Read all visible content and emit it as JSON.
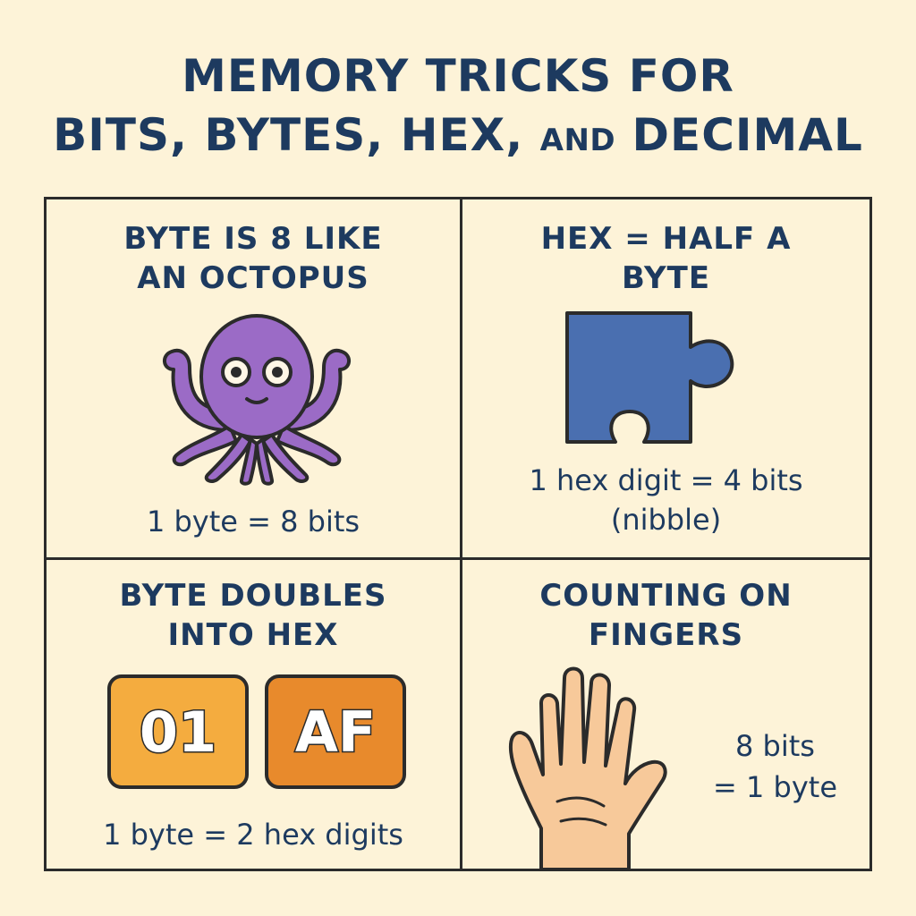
{
  "title": {
    "line1": "MEMORY TRICKS FOR",
    "line2_main": "BITS, BYTES, HEX,",
    "line2_and": "AND",
    "line2_end": "DECIMAL"
  },
  "panels": {
    "octopus": {
      "heading_line1": "BYTE IS 8 LIKE",
      "heading_line2": "AN OCTOPUS",
      "icon": "octopus-icon",
      "caption": "1 byte = 8 bits"
    },
    "puzzle": {
      "heading_line1": "HEX = HALF A",
      "heading_line2": "BYTE",
      "icon": "puzzle-piece-icon",
      "caption_line1": "1 hex digit = 4 bits",
      "caption_line2": "(nibble)"
    },
    "hex_tiles": {
      "heading_line1": "BYTE DOUBLES",
      "heading_line2": "INTO HEX",
      "tiles": [
        "01",
        "AF"
      ],
      "caption": "1 byte = 2 hex digits"
    },
    "fingers": {
      "heading_line1": "COUNTING ON",
      "heading_line2": "FINGERS",
      "icon": "hand-icon",
      "caption_line1": "8 bits",
      "caption_line2": "= 1 byte"
    }
  },
  "colors": {
    "background": "#fdf3d8",
    "text": "#1d3a5f",
    "octopus": "#9b6bc6",
    "puzzle": "#4a6fb0",
    "tile_light": "#f4ac3f",
    "tile_dark": "#e88a2c",
    "skin": "#f7c99a"
  }
}
